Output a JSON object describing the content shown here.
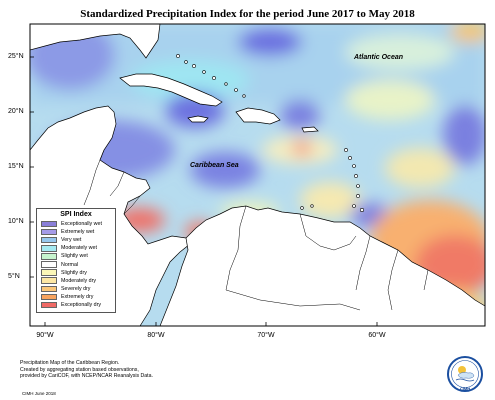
{
  "title": "Standardized Precipitation Index for the period June 2017 to May 2018",
  "map": {
    "labels": {
      "atlantic": "Atlantic Ocean",
      "caribbean": "Caribbean Sea"
    },
    "lat_ticks": [
      "25°N",
      "20°N",
      "15°N",
      "10°N",
      "5°N"
    ],
    "lon_ticks": [
      "90°W",
      "80°W",
      "70°W",
      "60°W"
    ],
    "colors": {
      "ocean_wet_blue": "#7e86e0",
      "cyan": "#9fe6f2",
      "light_blue": "#b8d8f0",
      "pale_yellow": "#eef4c0",
      "orange": "#f8c468",
      "red_dry": "#f06864"
    }
  },
  "legend": {
    "title": "SPI Index",
    "items": [
      {
        "label": "Exceptionally wet",
        "color": "#8a7fd9"
      },
      {
        "label": "Extremely wet",
        "color": "#a59ae8"
      },
      {
        "label": "Very wet",
        "color": "#97c7ee"
      },
      {
        "label": "Moderately wet",
        "color": "#a6eaf2"
      },
      {
        "label": "Slightly wet",
        "color": "#c7f4ce"
      },
      {
        "label": "Normal",
        "color": "#ffffff"
      },
      {
        "label": "Slightly dry",
        "color": "#fbf7b8"
      },
      {
        "label": "Moderately dry",
        "color": "#fde7a4"
      },
      {
        "label": "Severely dry",
        "color": "#fbc77a"
      },
      {
        "label": "Extremely dry",
        "color": "#f8a45f"
      },
      {
        "label": "Exceptionally dry",
        "color": "#f06a66"
      }
    ]
  },
  "footnote": {
    "lines": [
      "Precipitation Map of the Caribbean Region.",
      "Created by aggregating station based observations,",
      "provided by CariCOF, with NCEP/NCAR Reanalysis Data."
    ],
    "credit": "CIMH June 2018"
  },
  "logo": {
    "text": "CIMH"
  }
}
